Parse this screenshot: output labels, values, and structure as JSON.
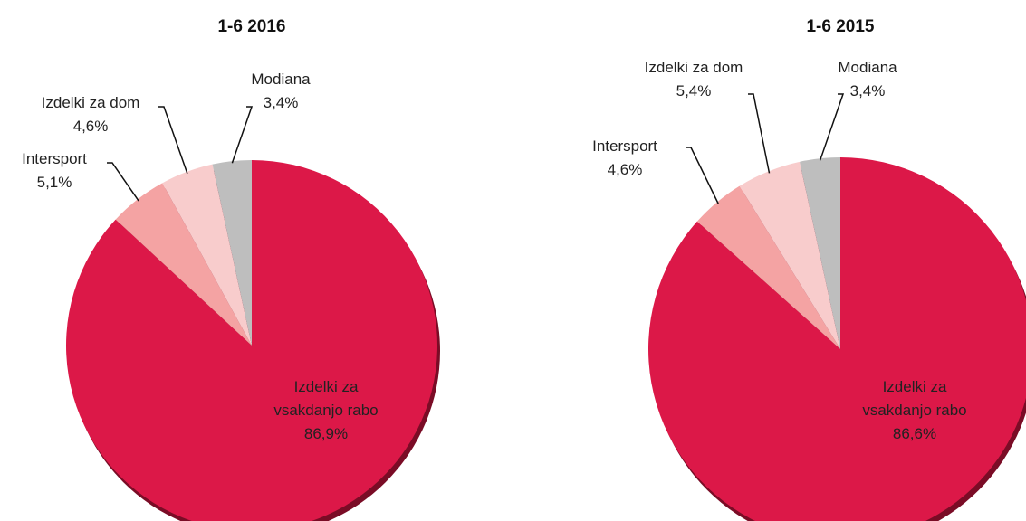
{
  "chart_data": [
    {
      "type": "pie",
      "title": "1-6 2016",
      "categories": [
        "Izdelki za vsakdanjo rabo",
        "Intersport",
        "Izdelki za dom",
        "Modiana"
      ],
      "values": [
        86.9,
        5.1,
        4.6,
        3.4
      ],
      "value_labels": [
        "86,9%",
        "5,1%",
        "4,6%",
        "3,4%"
      ],
      "colors": [
        "#dc1848",
        "#f4a3a3",
        "#f8cccc",
        "#bebebe"
      ]
    },
    {
      "type": "pie",
      "title": "1-6 2015",
      "categories": [
        "Izdelki za vsakdanjo rabo",
        "Intersport",
        "Izdelki za dom",
        "Modiana"
      ],
      "values": [
        86.6,
        4.6,
        5.4,
        3.4
      ],
      "value_labels": [
        "86,6%",
        "4,6%",
        "5,4%",
        "3,4%"
      ],
      "colors": [
        "#dc1848",
        "#f4a3a3",
        "#f8cccc",
        "#bebebe"
      ]
    }
  ]
}
